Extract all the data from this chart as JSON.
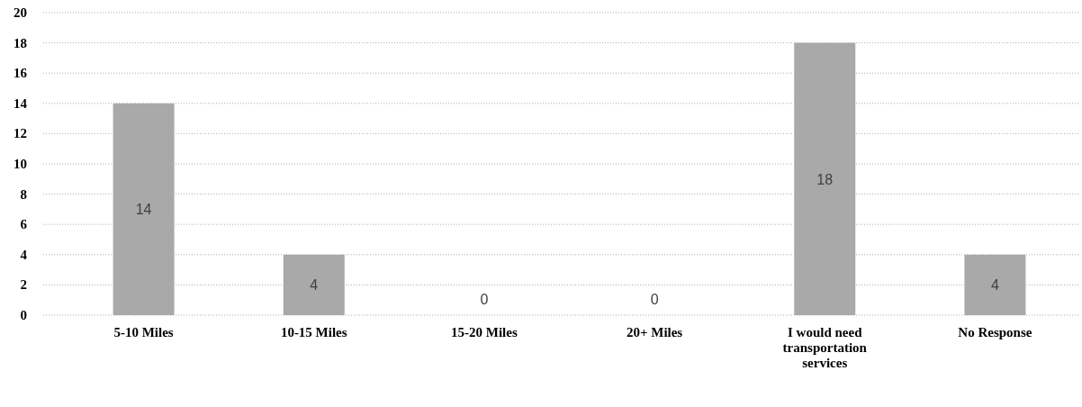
{
  "chart_data": {
    "type": "bar",
    "categories": [
      "5-10 Miles",
      "10-15 Miles",
      "15-20 Miles",
      "20+ Miles",
      "I would need transportation services",
      "No Response"
    ],
    "values": [
      14,
      4,
      0,
      0,
      18,
      4
    ],
    "color": "#a9a9a9",
    "ylim": [
      0,
      20
    ],
    "yticks": [
      0,
      2,
      4,
      6,
      8,
      10,
      12,
      14,
      16,
      18,
      20
    ],
    "grid": "y",
    "data_labels": true
  }
}
